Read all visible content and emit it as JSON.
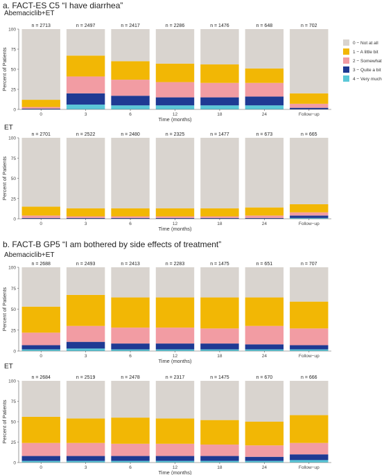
{
  "figure": {
    "section_a_title": "a. FACT-ES C5 “I have diarrhea”",
    "section_b_title": "b. FACT-B GP5 “I am bothered by side effects of treatment”"
  },
  "legend": [
    {
      "label": "0 − Not at all",
      "color": "#D9D4CF"
    },
    {
      "label": "1 − A little bit",
      "color": "#F2B705"
    },
    {
      "label": "2 − Somewhat",
      "color": "#F29CA3"
    },
    {
      "label": "3 − Quite a bit",
      "color": "#1F3A93"
    },
    {
      "label": "4 − Very much",
      "color": "#5BC8D8"
    }
  ],
  "chart_data": [
    {
      "type": "bar",
      "stacked": true,
      "title": "Abemaciclib+ET",
      "xlabel": "Time (months)",
      "ylabel": "Percent of Patients",
      "ylim": [
        0,
        100
      ],
      "yticks": [
        0,
        25,
        50,
        75,
        100
      ],
      "categories": [
        "0",
        "3",
        "6",
        "12",
        "18",
        "24",
        "Follow−up"
      ],
      "n_labels": [
        "n = 2713",
        "n = 2497",
        "n = 2417",
        "n = 2286",
        "n = 1476",
        "n = 648",
        "n = 702"
      ],
      "series": [
        {
          "name": "4 − Very much",
          "values": [
            0,
            6,
            5,
            5,
            5,
            5,
            0
          ]
        },
        {
          "name": "3 − Quite a bit",
          "values": [
            1,
            14,
            12,
            10,
            10,
            11,
            2
          ]
        },
        {
          "name": "2 − Somewhat",
          "values": [
            2,
            21,
            20,
            19,
            18,
            17,
            5
          ]
        },
        {
          "name": "1 − A little bit",
          "values": [
            9,
            26,
            23,
            23,
            23,
            18,
            13
          ]
        },
        {
          "name": "0 − Not at all",
          "values": [
            88,
            33,
            40,
            43,
            44,
            49,
            80
          ]
        }
      ]
    },
    {
      "type": "bar",
      "stacked": true,
      "title": "ET",
      "xlabel": "Time (months)",
      "ylabel": "Percent of Patients",
      "ylim": [
        0,
        100
      ],
      "yticks": [
        0,
        25,
        50,
        75,
        100
      ],
      "categories": [
        "0",
        "3",
        "6",
        "12",
        "18",
        "24",
        "Follow−up"
      ],
      "n_labels": [
        "n = 2701",
        "n = 2522",
        "n = 2480",
        "n = 2325",
        "n = 1477",
        "n = 673",
        "n = 665"
      ],
      "series": [
        {
          "name": "4 − Very much",
          "values": [
            0,
            0,
            0,
            0,
            0,
            0,
            1
          ]
        },
        {
          "name": "3 − Quite a bit",
          "values": [
            1,
            1,
            1,
            1,
            1,
            1,
            3
          ]
        },
        {
          "name": "2 − Somewhat",
          "values": [
            3,
            2,
            2,
            2,
            2,
            3,
            4
          ]
        },
        {
          "name": "1 − A little bit",
          "values": [
            11,
            10,
            10,
            10,
            10,
            10,
            10
          ]
        },
        {
          "name": "0 − Not at all",
          "values": [
            85,
            87,
            87,
            87,
            87,
            86,
            82
          ]
        }
      ]
    },
    {
      "type": "bar",
      "stacked": true,
      "title": "Abemaciclib+ET",
      "xlabel": "Time (months)",
      "ylabel": "Percent of Patients",
      "ylim": [
        0,
        100
      ],
      "yticks": [
        0,
        25,
        50,
        75,
        100
      ],
      "categories": [
        "0",
        "3",
        "6",
        "12",
        "18",
        "24",
        "Follow−up"
      ],
      "n_labels": [
        "n = 2688",
        "n = 2493",
        "n = 2413",
        "n = 2283",
        "n = 1475",
        "n = 651",
        "n = 707"
      ],
      "series": [
        {
          "name": "4 − Very much",
          "values": [
            2,
            3,
            2,
            2,
            2,
            2,
            2
          ]
        },
        {
          "name": "3 − Quite a bit",
          "values": [
            5,
            8,
            7,
            7,
            7,
            6,
            5
          ]
        },
        {
          "name": "2 − Somewhat",
          "values": [
            15,
            19,
            19,
            19,
            18,
            22,
            20
          ]
        },
        {
          "name": "1 − A little bit",
          "values": [
            31,
            37,
            36,
            36,
            37,
            34,
            32
          ]
        },
        {
          "name": "0 − Not at all",
          "values": [
            47,
            33,
            36,
            36,
            36,
            36,
            41
          ]
        }
      ]
    },
    {
      "type": "bar",
      "stacked": true,
      "title": "ET",
      "xlabel": "Time (months)",
      "ylabel": "Percent of Patients",
      "ylim": [
        0,
        100
      ],
      "yticks": [
        0,
        25,
        50,
        75,
        100
      ],
      "categories": [
        "0",
        "3",
        "6",
        "12",
        "18",
        "24",
        "Follow−up"
      ],
      "n_labels": [
        "n = 2684",
        "n = 2519",
        "n = 2478",
        "n = 2317",
        "n = 1475",
        "n = 670",
        "n = 666"
      ],
      "series": [
        {
          "name": "4 − Very much",
          "values": [
            2,
            2,
            2,
            2,
            2,
            2,
            3
          ]
        },
        {
          "name": "3 − Quite a bit",
          "values": [
            6,
            6,
            6,
            6,
            6,
            5,
            7
          ]
        },
        {
          "name": "2 − Somewhat",
          "values": [
            16,
            16,
            15,
            15,
            14,
            14,
            14
          ]
        },
        {
          "name": "1 − A little bit",
          "values": [
            32,
            30,
            32,
            31,
            30,
            29,
            34
          ]
        },
        {
          "name": "0 − Not at all",
          "values": [
            44,
            46,
            45,
            46,
            48,
            50,
            42
          ]
        }
      ]
    }
  ]
}
